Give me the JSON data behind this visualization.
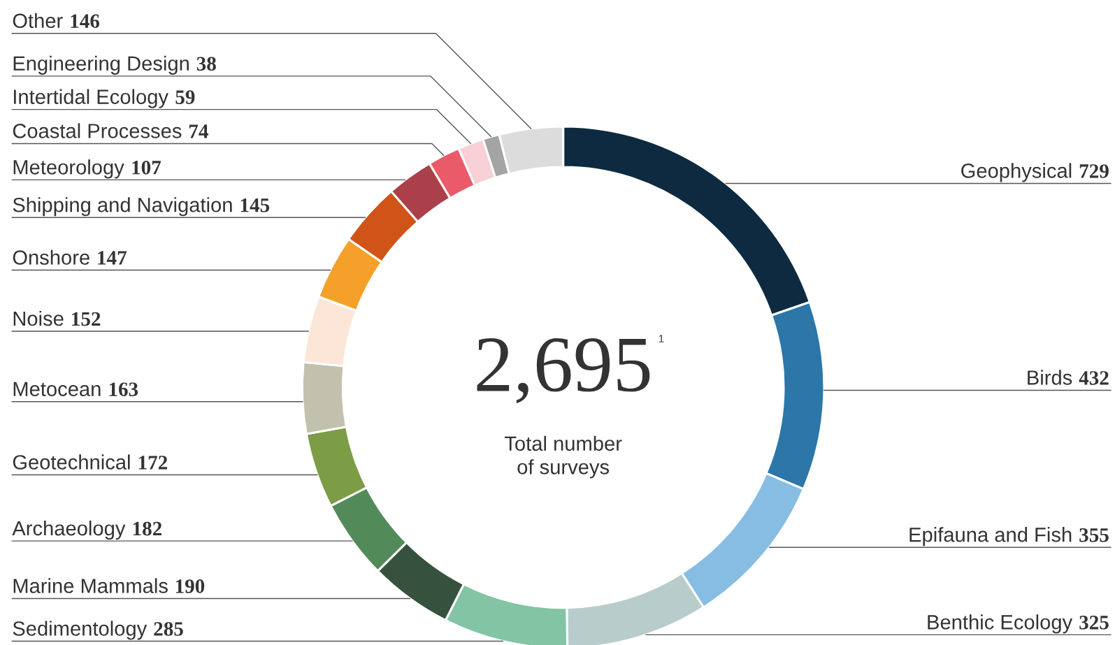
{
  "chart_data": {
    "type": "donut",
    "categories": [
      "Geophysical",
      "Birds",
      "Epifauna and Fish",
      "Benthic Ecology",
      "Sedimentology",
      "Marine Mammals",
      "Archaeology",
      "Geotechnical",
      "Metocean",
      "Noise",
      "Onshore",
      "Shipping and Navigation",
      "Meteorology",
      "Coastal Processes",
      "Intertidal Ecology",
      "Engineering Design",
      "Other"
    ],
    "values": [
      729,
      432,
      355,
      325,
      285,
      190,
      182,
      172,
      163,
      152,
      147,
      145,
      107,
      74,
      59,
      38,
      146
    ],
    "colors": [
      "#0d2a40",
      "#2c76a8",
      "#87bde3",
      "#b9cccc",
      "#82c4a4",
      "#36523e",
      "#538a5a",
      "#7c9c46",
      "#c2c1ae",
      "#fce6d8",
      "#f5a02a",
      "#d05418",
      "#ac404a",
      "#ea5a68",
      "#f8d0d6",
      "#a4a4a4",
      "#dcdcdc"
    ],
    "data_labels": true,
    "annotations": [
      "2,695$^{1}$",
      "Total number\nof surveys"
    ]
  }
}
